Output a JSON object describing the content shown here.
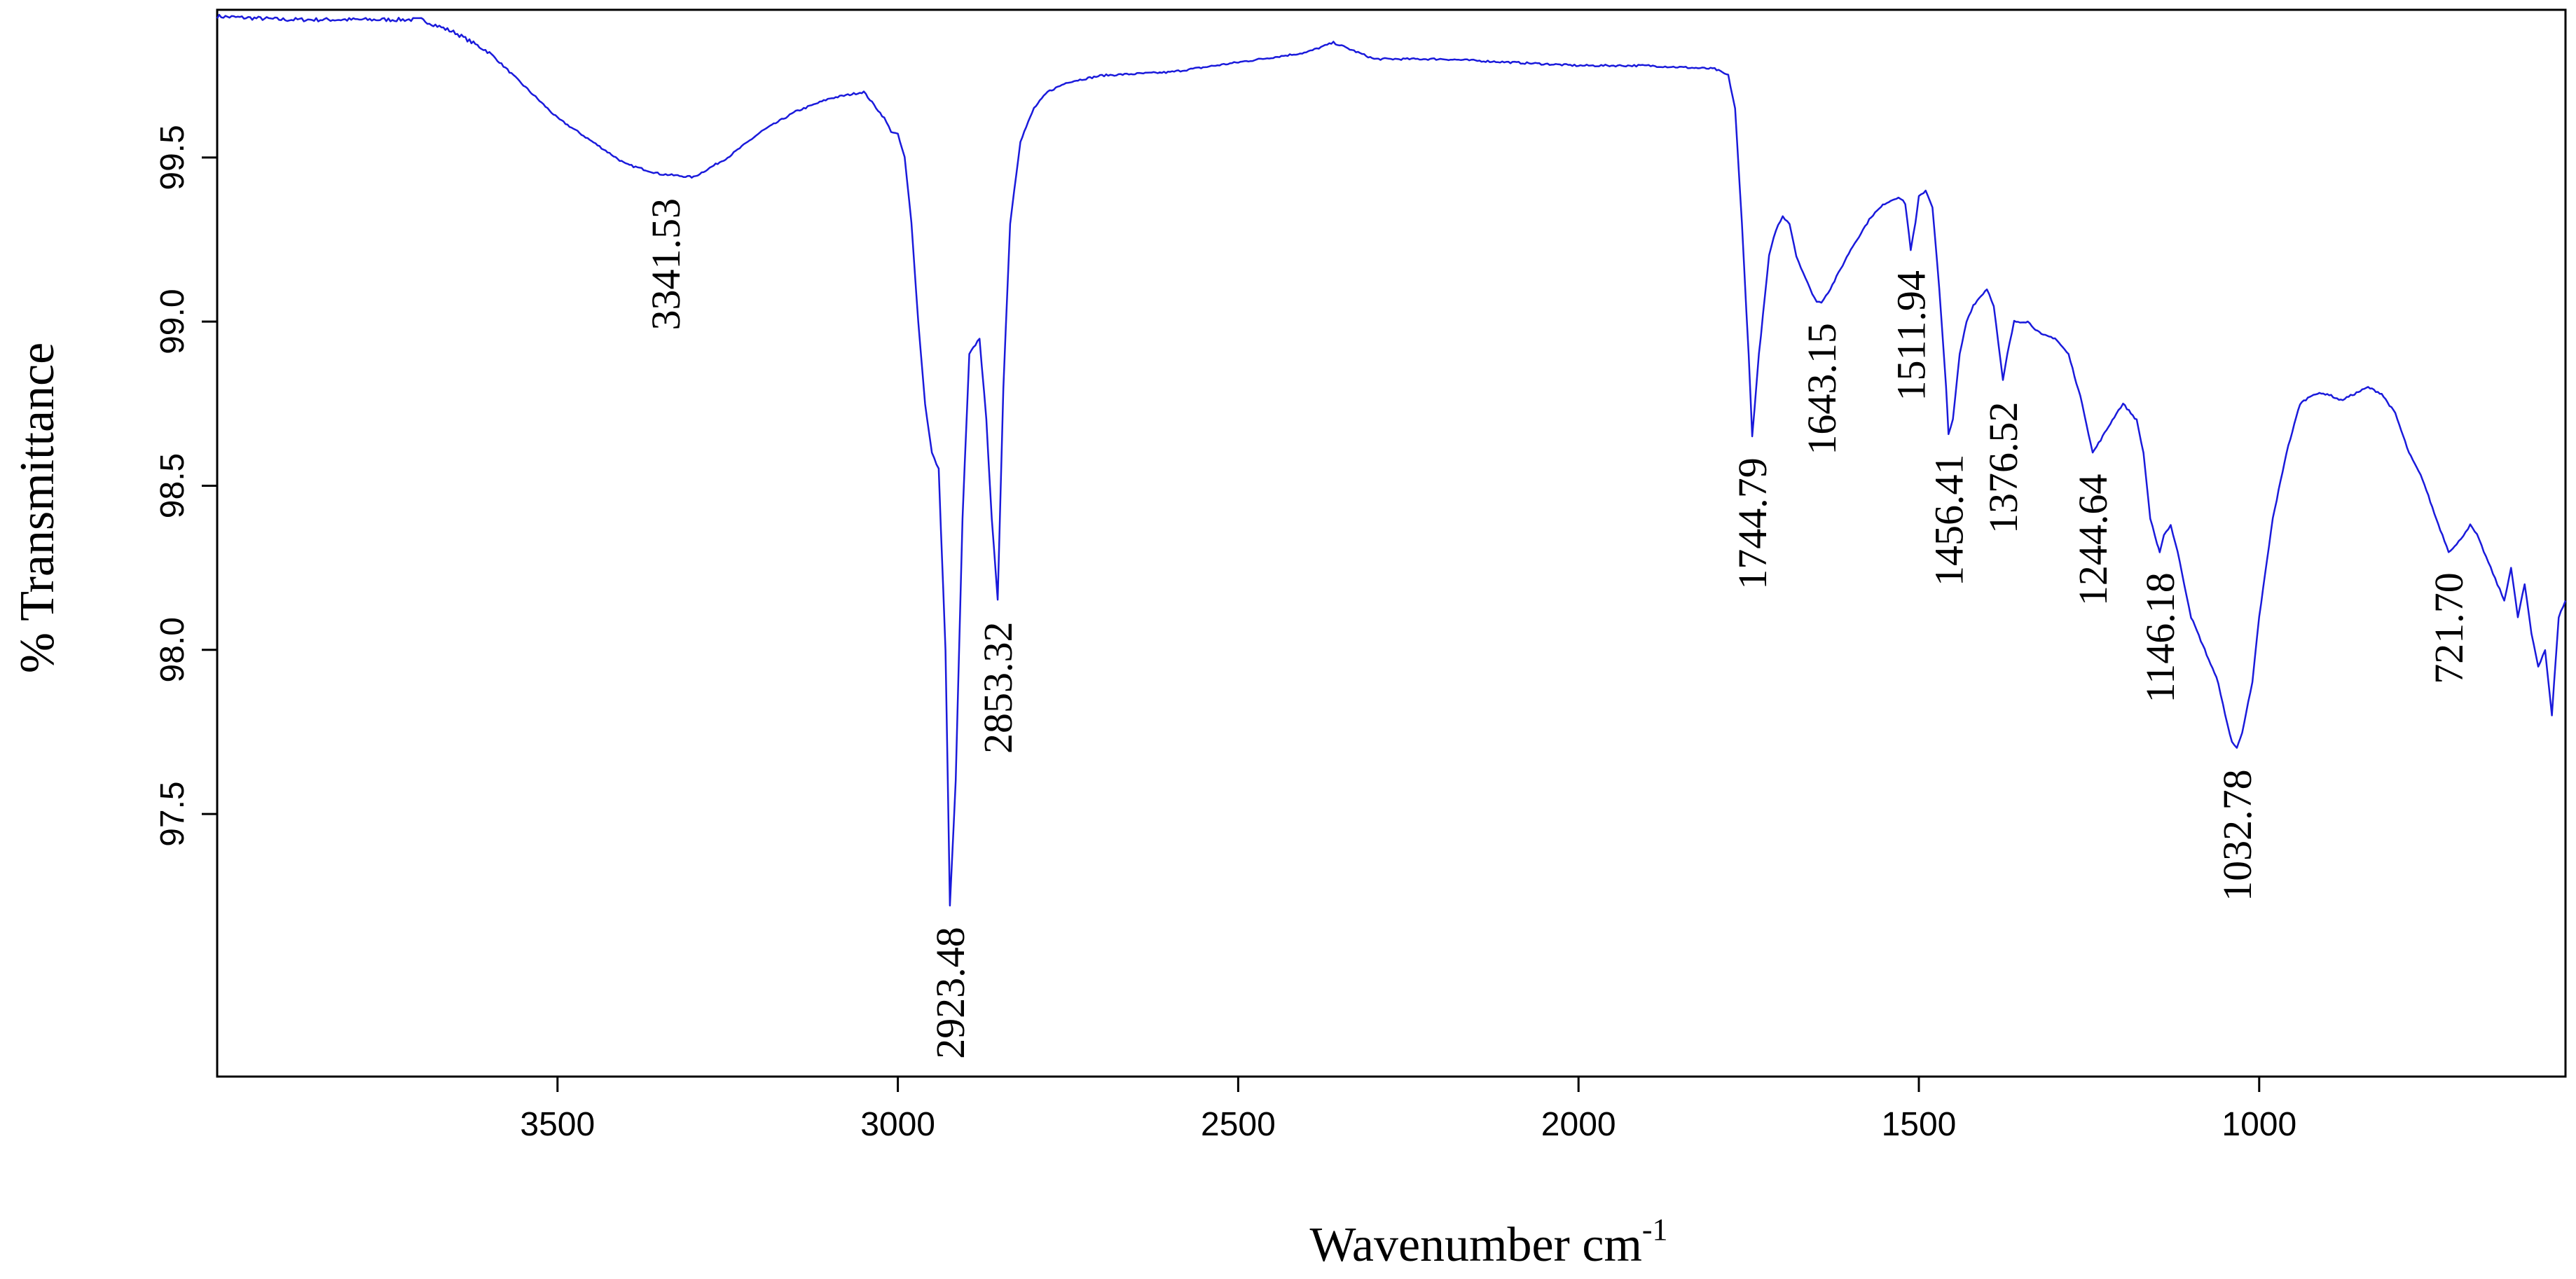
{
  "chart_data": {
    "type": "line",
    "title": "",
    "xlabel": "Wavenumber cm",
    "xlabel_superscript": "-1",
    "ylabel": "% Transmittance",
    "xlim": [
      4000,
      550
    ],
    "x_reversed": true,
    "ylim": [
      96.7,
      99.95
    ],
    "xticks": [
      {
        "value": 3500,
        "label": "3500"
      },
      {
        "value": 3000,
        "label": "3000"
      },
      {
        "value": 2500,
        "label": "2500"
      },
      {
        "value": 2000,
        "label": "2000"
      },
      {
        "value": 1500,
        "label": "1500"
      },
      {
        "value": 1000,
        "label": "1000"
      }
    ],
    "yticks": [
      {
        "value": 97.5,
        "label": "97.5"
      },
      {
        "value": 98.0,
        "label": "98.0"
      },
      {
        "value": 98.5,
        "label": "98.5"
      },
      {
        "value": 99.0,
        "label": "99.0"
      },
      {
        "value": 99.5,
        "label": "99.5"
      }
    ],
    "grid": false,
    "legend": "none",
    "line_color": "#1a1adb",
    "series": [
      {
        "x": [
          4000,
          3900,
          3800,
          3700,
          3650,
          3600,
          3550,
          3500,
          3450,
          3400,
          3350,
          3300,
          3250,
          3200,
          3150,
          3100,
          3050,
          3020,
          3010,
          3000,
          2990,
          2980,
          2970,
          2960,
          2950,
          2940,
          2930,
          2923.48,
          2915,
          2905,
          2895,
          2880,
          2870,
          2862,
          2853.32,
          2845,
          2835,
          2820,
          2800,
          2780,
          2750,
          2700,
          2600,
          2500,
          2400,
          2360,
          2300,
          2200,
          2100,
          2000,
          1900,
          1800,
          1780,
          1770,
          1760,
          1750,
          1744.79,
          1735,
          1720,
          1710,
          1700,
          1690,
          1680,
          1670,
          1660,
          1650,
          1643.15,
          1630,
          1600,
          1570,
          1550,
          1530,
          1520,
          1511.94,
          1505,
          1500,
          1490,
          1480,
          1470,
          1460,
          1456.41,
          1450,
          1440,
          1430,
          1420,
          1400,
          1390,
          1376.52,
          1370,
          1360,
          1340,
          1320,
          1300,
          1280,
          1260,
          1244.64,
          1230,
          1210,
          1200,
          1180,
          1170,
          1160,
          1150,
          1146.18,
          1140,
          1130,
          1120,
          1110,
          1100,
          1080,
          1060,
          1050,
          1040,
          1032.78,
          1025,
          1010,
          1000,
          980,
          960,
          940,
          920,
          900,
          880,
          860,
          840,
          820,
          800,
          780,
          760,
          740,
          721.7,
          710,
          700,
          690,
          680,
          670,
          660,
          650,
          640,
          630,
          620,
          610,
          600,
          590,
          580,
          570,
          560,
          550
        ],
        "y": [
          99.93,
          99.92,
          99.92,
          99.92,
          99.88,
          99.82,
          99.72,
          99.62,
          99.55,
          99.48,
          99.45,
          99.44,
          99.5,
          99.58,
          99.64,
          99.68,
          99.7,
          99.62,
          99.58,
          99.57,
          99.5,
          99.3,
          99.0,
          98.75,
          98.6,
          98.55,
          98.0,
          97.22,
          97.6,
          98.4,
          98.9,
          98.95,
          98.7,
          98.4,
          98.15,
          98.8,
          99.3,
          99.55,
          99.65,
          99.7,
          99.73,
          99.75,
          99.76,
          99.79,
          99.82,
          99.85,
          99.8,
          99.8,
          99.79,
          99.78,
          99.78,
          99.77,
          99.75,
          99.65,
          99.3,
          98.9,
          98.65,
          98.9,
          99.2,
          99.28,
          99.32,
          99.3,
          99.2,
          99.15,
          99.1,
          99.06,
          99.06,
          99.1,
          99.22,
          99.32,
          99.36,
          99.38,
          99.36,
          99.22,
          99.3,
          99.38,
          99.4,
          99.35,
          99.1,
          98.8,
          98.66,
          98.7,
          98.9,
          99.0,
          99.05,
          99.1,
          99.05,
          98.82,
          98.9,
          99.0,
          99.0,
          98.96,
          98.95,
          98.9,
          98.75,
          98.6,
          98.65,
          98.72,
          98.75,
          98.7,
          98.6,
          98.4,
          98.32,
          98.3,
          98.35,
          98.38,
          98.3,
          98.2,
          98.1,
          98.0,
          97.9,
          97.8,
          97.72,
          97.7,
          97.75,
          97.9,
          98.1,
          98.4,
          98.6,
          98.75,
          98.78,
          98.78,
          98.76,
          98.78,
          98.8,
          98.78,
          98.72,
          98.6,
          98.52,
          98.4,
          98.3,
          98.32,
          98.35,
          98.38,
          98.35,
          98.3,
          98.25,
          98.2,
          98.15,
          98.25,
          98.1,
          98.2,
          98.05,
          97.95,
          98.0,
          97.8,
          98.1,
          98.15
        ]
      }
    ],
    "annotations": [
      {
        "label": "3341.53",
        "x": 3341.53,
        "y": 99.44
      },
      {
        "label": "2923.48",
        "x": 2923.48,
        "y": 97.22
      },
      {
        "label": "2853.32",
        "x": 2853.32,
        "y": 98.15
      },
      {
        "label": "1744.79",
        "x": 1744.79,
        "y": 98.65
      },
      {
        "label": "1643.15",
        "x": 1643.15,
        "y": 99.06
      },
      {
        "label": "1511.94",
        "x": 1511.94,
        "y": 99.22
      },
      {
        "label": "1456.41",
        "x": 1456.41,
        "y": 98.66
      },
      {
        "label": "1376.52",
        "x": 1376.52,
        "y": 98.82
      },
      {
        "label": "1244.64",
        "x": 1244.64,
        "y": 98.6
      },
      {
        "label": "1146.18",
        "x": 1146.18,
        "y": 98.3
      },
      {
        "label": "1032.78",
        "x": 1032.78,
        "y": 97.7
      },
      {
        "label": "721.70",
        "x": 721.7,
        "y": 98.3
      }
    ]
  }
}
